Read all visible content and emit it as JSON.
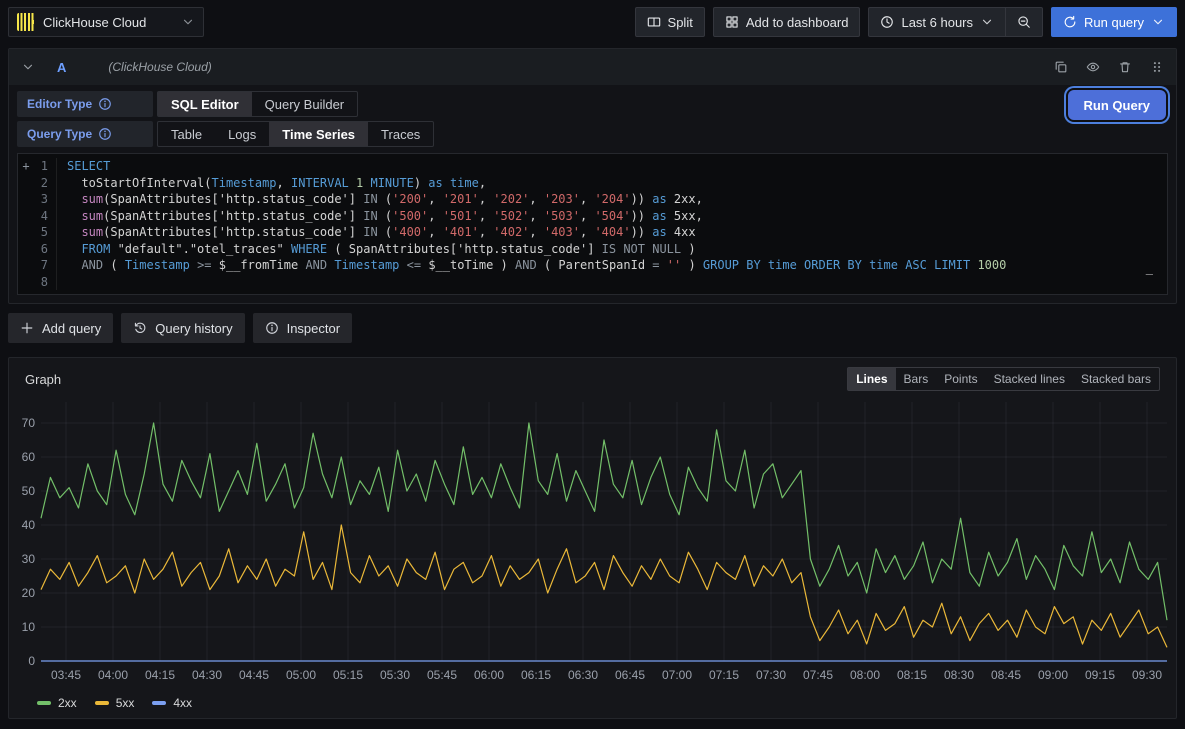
{
  "toolbar": {
    "datasource_label": "ClickHouse Cloud",
    "datasource_icon": "clickhouse-logo",
    "split_label": "Split",
    "add_to_dashboard_label": "Add to dashboard",
    "time_range_label": "Last 6 hours",
    "run_query_label": "Run query"
  },
  "query_row": {
    "ref_id": "A",
    "datasource_hint": "(ClickHouse Cloud)",
    "action_icons": [
      "duplicate-icon",
      "eye-icon",
      "trash-icon",
      "drag-handle-icon"
    ]
  },
  "editor_options": {
    "editor_type_label": "Editor Type",
    "editor_type_options": [
      "SQL Editor",
      "Query Builder"
    ],
    "editor_type_selected": "SQL Editor",
    "query_type_label": "Query Type",
    "query_type_options": [
      "Table",
      "Logs",
      "Time Series",
      "Traces"
    ],
    "query_type_selected": "Time Series",
    "run_query_label": "Run Query"
  },
  "sql_editor": {
    "lines": [
      {
        "num": "1",
        "gutter": "+",
        "tokens": [
          [
            "kw",
            "SELECT"
          ]
        ]
      },
      {
        "num": "2",
        "gutter": "",
        "tokens": [
          [
            "pl",
            "  toStartOfInterval("
          ],
          [
            "kw",
            "Timestamp"
          ],
          [
            "pl",
            ", "
          ],
          [
            "kw",
            "INTERVAL"
          ],
          [
            "num",
            " 1 "
          ],
          [
            "kw",
            "MINUTE"
          ],
          [
            "pl",
            ") "
          ],
          [
            "kw",
            "as time"
          ],
          [
            "pl",
            ","
          ]
        ]
      },
      {
        "num": "3",
        "gutter": "",
        "tokens": [
          [
            "fn",
            "  sum"
          ],
          [
            "pl",
            "(SpanAttributes['http.status_code'] "
          ],
          [
            "op",
            "IN"
          ],
          [
            "pl",
            " ("
          ],
          [
            "str",
            "'200'"
          ],
          [
            "pl",
            ", "
          ],
          [
            "str",
            "'201'"
          ],
          [
            "pl",
            ", "
          ],
          [
            "str",
            "'202'"
          ],
          [
            "pl",
            ", "
          ],
          [
            "str",
            "'203'"
          ],
          [
            "pl",
            ", "
          ],
          [
            "str",
            "'204'"
          ],
          [
            "pl",
            ")) "
          ],
          [
            "kw",
            "as"
          ],
          [
            "pl",
            " 2xx,"
          ]
        ]
      },
      {
        "num": "4",
        "gutter": "",
        "tokens": [
          [
            "fn",
            "  sum"
          ],
          [
            "pl",
            "(SpanAttributes['http.status_code'] "
          ],
          [
            "op",
            "IN"
          ],
          [
            "pl",
            " ("
          ],
          [
            "str",
            "'500'"
          ],
          [
            "pl",
            ", "
          ],
          [
            "str",
            "'501'"
          ],
          [
            "pl",
            ", "
          ],
          [
            "str",
            "'502'"
          ],
          [
            "pl",
            ", "
          ],
          [
            "str",
            "'503'"
          ],
          [
            "pl",
            ", "
          ],
          [
            "str",
            "'504'"
          ],
          [
            "pl",
            ")) "
          ],
          [
            "kw",
            "as"
          ],
          [
            "pl",
            " 5xx,"
          ]
        ]
      },
      {
        "num": "5",
        "gutter": "",
        "tokens": [
          [
            "fn",
            "  sum"
          ],
          [
            "pl",
            "(SpanAttributes['http.status_code'] "
          ],
          [
            "op",
            "IN"
          ],
          [
            "pl",
            " ("
          ],
          [
            "str",
            "'400'"
          ],
          [
            "pl",
            ", "
          ],
          [
            "str",
            "'401'"
          ],
          [
            "pl",
            ", "
          ],
          [
            "str",
            "'402'"
          ],
          [
            "pl",
            ", "
          ],
          [
            "str",
            "'403'"
          ],
          [
            "pl",
            ", "
          ],
          [
            "str",
            "'404'"
          ],
          [
            "pl",
            ")) "
          ],
          [
            "kw",
            "as"
          ],
          [
            "pl",
            " 4xx"
          ]
        ]
      },
      {
        "num": "6",
        "gutter": "",
        "tokens": [
          [
            "kw",
            "  FROM"
          ],
          [
            "pl",
            " \"default\".\"otel_traces\" "
          ],
          [
            "kw",
            "WHERE"
          ],
          [
            "pl",
            " ( SpanAttributes['http.status_code'] "
          ],
          [
            "op",
            "IS NOT NULL"
          ],
          [
            "pl",
            " )"
          ]
        ]
      },
      {
        "num": "7",
        "gutter": "",
        "tokens": [
          [
            "op",
            "  AND"
          ],
          [
            "pl",
            " ( "
          ],
          [
            "kw",
            "Timestamp"
          ],
          [
            "op",
            " >= "
          ],
          [
            "pl",
            "$__fromTime "
          ],
          [
            "op",
            "AND"
          ],
          [
            "pl",
            " "
          ],
          [
            "kw",
            "Timestamp"
          ],
          [
            "op",
            " <= "
          ],
          [
            "pl",
            "$__toTime ) "
          ],
          [
            "op",
            "AND"
          ],
          [
            "pl",
            " ( ParentSpanId "
          ],
          [
            "op",
            "="
          ],
          [
            "pl",
            " "
          ],
          [
            "str",
            "''"
          ],
          [
            "pl",
            " ) "
          ],
          [
            "kw",
            "GROUP BY time ORDER BY time ASC LIMIT"
          ],
          [
            "num",
            " 1000"
          ]
        ]
      },
      {
        "num": "8",
        "gutter": "",
        "tokens": []
      }
    ]
  },
  "secondary_actions": [
    {
      "label": "Add query",
      "icon": "plus-icon"
    },
    {
      "label": "Query history",
      "icon": "history-icon"
    },
    {
      "label": "Inspector",
      "icon": "info-circle-icon"
    }
  ],
  "graph_panel": {
    "title": "Graph",
    "style_options": [
      "Lines",
      "Bars",
      "Points",
      "Stacked lines",
      "Stacked bars"
    ],
    "style_selected": "Lines"
  },
  "colors": {
    "accent_blue": "#3d71d9",
    "label_blue": "#7b9ded",
    "series_green": "#73BF69",
    "series_yellow": "#EAB839",
    "series_blue": "#7B9FF0"
  },
  "chart_data": {
    "type": "line",
    "title": "Graph",
    "x_tick_labels": [
      "03:45",
      "04:00",
      "04:15",
      "04:30",
      "04:45",
      "05:00",
      "05:15",
      "05:30",
      "05:45",
      "06:00",
      "06:15",
      "06:30",
      "06:45",
      "07:00",
      "07:15",
      "07:30",
      "07:45",
      "08:00",
      "08:15",
      "08:30",
      "08:45",
      "09:00",
      "09:15",
      "09:30"
    ],
    "x_range_note": "Last 6 hours, 1-minute buckets, approx 03:37 to 09:37; sampled every ~3 minutes below",
    "y_ticks": [
      0,
      10,
      20,
      30,
      40,
      50,
      60,
      70
    ],
    "ylim": [
      0,
      77
    ],
    "grid": true,
    "legend_position": "bottom-left",
    "series": [
      {
        "name": "2xx",
        "color": "#73BF69",
        "values": [
          42,
          54,
          48,
          51,
          45,
          58,
          50,
          46,
          62,
          49,
          43,
          55,
          70,
          52,
          47,
          59,
          53,
          48,
          61,
          44,
          50,
          56,
          49,
          64,
          47,
          52,
          58,
          45,
          51,
          67,
          55,
          48,
          60,
          46,
          53,
          49,
          57,
          44,
          62,
          50,
          55,
          47,
          59,
          52,
          46,
          63,
          49,
          54,
          48,
          58,
          51,
          45,
          70,
          53,
          49,
          61,
          47,
          56,
          50,
          44,
          65,
          52,
          48,
          59,
          46,
          54,
          60,
          49,
          43,
          57,
          51,
          47,
          68,
          53,
          50,
          62,
          45,
          55,
          58,
          48,
          52,
          56,
          30,
          22,
          27,
          34,
          25,
          29,
          20,
          33,
          26,
          31,
          24,
          28,
          35,
          23,
          30,
          27,
          42,
          26,
          22,
          32,
          25,
          29,
          36,
          24,
          31,
          27,
          21,
          34,
          28,
          25,
          38,
          26,
          30,
          23,
          35,
          27,
          24,
          29,
          12
        ]
      },
      {
        "name": "5xx",
        "color": "#EAB839",
        "values": [
          21,
          27,
          24,
          29,
          22,
          26,
          31,
          23,
          25,
          28,
          20,
          30,
          24,
          27,
          32,
          22,
          26,
          29,
          21,
          25,
          33,
          23,
          28,
          24,
          30,
          22,
          27,
          25,
          38,
          24,
          29,
          21,
          40,
          26,
          23,
          31,
          25,
          28,
          22,
          30,
          26,
          24,
          32,
          21,
          27,
          29,
          23,
          25,
          31,
          22,
          28,
          24,
          26,
          30,
          20,
          27,
          33,
          23,
          25,
          29,
          21,
          31,
          26,
          22,
          28,
          24,
          30,
          25,
          23,
          32,
          27,
          21,
          29,
          26,
          24,
          31,
          22,
          28,
          25,
          30,
          23,
          26,
          13,
          6,
          10,
          15,
          8,
          12,
          5,
          14,
          9,
          11,
          16,
          7,
          12,
          10,
          17,
          8,
          13,
          6,
          11,
          14,
          9,
          12,
          7,
          15,
          10,
          8,
          16,
          11,
          13,
          5,
          12,
          9,
          14,
          7,
          11,
          15,
          8,
          10,
          4
        ]
      },
      {
        "name": "4xx",
        "color": "#7B9FF0",
        "constant": 0
      }
    ]
  }
}
